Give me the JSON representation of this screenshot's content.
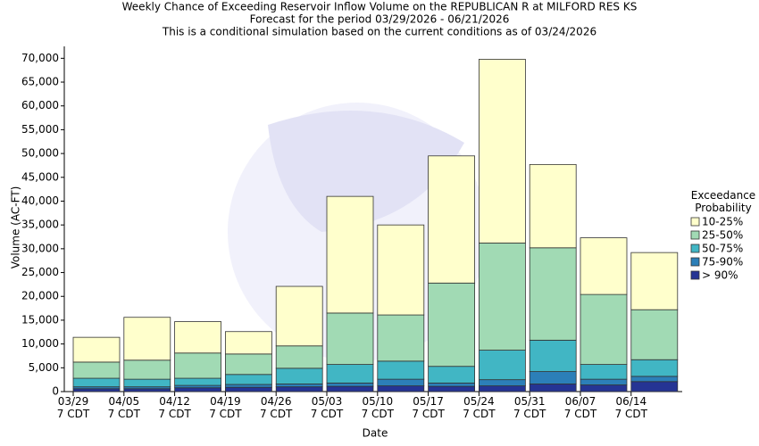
{
  "chart_data": {
    "type": "stacked_bar",
    "title": "Weekly Chance of Exceeding Reservoir Inflow Volume on the REPUBLICAN R at MILFORD RES KS",
    "subtitle": "Forecast for the period 03/29/2026 - 06/21/2026",
    "subtitle2": "This is a conditional simulation based on the current conditions as of 03/24/2026",
    "x_label": "Date",
    "y_label": "Volume (AC-FT)",
    "legend_title": "Exceedance\nProbability",
    "categories": [
      "03/29\n7 CDT",
      "04/05\n7 CDT",
      "04/12\n7 CDT",
      "04/19\n7 CDT",
      "04/26\n7 CDT",
      "05/03\n7 CDT",
      "05/10\n7 CDT",
      "05/17\n7 CDT",
      "05/24\n7 CDT",
      "05/31\n7 CDT",
      "06/07\n7 CDT",
      "06/14\n7 CDT"
    ],
    "series": [
      {
        "name": "> 90%",
        "color": "#253494",
        "values": [
          600,
          600,
          800,
          900,
          1000,
          1100,
          1200,
          1100,
          1200,
          1600,
          1400,
          2100
        ]
      },
      {
        "name": "75-90%",
        "color": "#2c7fb8",
        "values": [
          400,
          400,
          500,
          600,
          600,
          700,
          1400,
          700,
          1300,
          2600,
          1200,
          1100
        ]
      },
      {
        "name": "50-75%",
        "color": "#41b6c4",
        "values": [
          1800,
          1600,
          1500,
          2100,
          3300,
          3900,
          3800,
          3500,
          6200,
          6600,
          3100,
          3500
        ]
      },
      {
        "name": "25-50%",
        "color": "#a1dab4",
        "values": [
          3400,
          4000,
          5300,
          4300,
          4700,
          10800,
          9700,
          17500,
          22500,
          19400,
          14700,
          10500
        ]
      },
      {
        "name": "10-25%",
        "color": "#ffffcc",
        "values": [
          5200,
          9000,
          6600,
          4700,
          12500,
          24500,
          18900,
          26700,
          38600,
          17500,
          11900,
          12000
        ]
      }
    ],
    "ylim": [
      0,
      72500
    ],
    "yticks": [
      0,
      {
        "value": 5000,
        "label": "5,000"
      },
      {
        "value": 10000,
        "label": "10,000"
      },
      {
        "value": 15000,
        "label": "15,000"
      },
      {
        "value": 20000,
        "label": "20,000"
      },
      {
        "value": 25000,
        "label": "25,000"
      },
      {
        "value": 30000,
        "label": "30,000"
      },
      {
        "value": 35000,
        "label": "35,000"
      },
      {
        "value": 40000,
        "label": "40,000"
      },
      {
        "value": 45000,
        "label": "45,000"
      },
      {
        "value": 50000,
        "label": "50,000"
      },
      {
        "value": 55000,
        "label": "55,000"
      },
      {
        "value": 60000,
        "label": "60,000"
      },
      {
        "value": 65000,
        "label": "65,000"
      },
      {
        "value": 70000,
        "label": "70,000"
      }
    ],
    "grid": false,
    "legend_position": "right"
  }
}
